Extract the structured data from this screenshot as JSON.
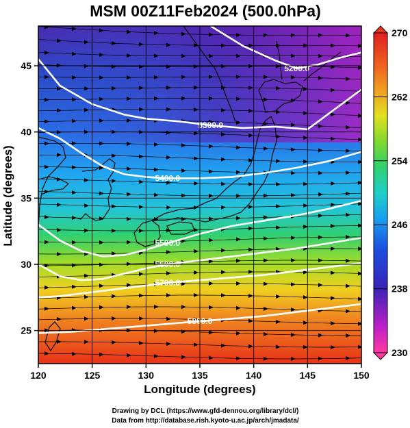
{
  "title": "MSM 00Z11Feb2024 (500.0hPa)",
  "xlabel": "Longitude (degrees)",
  "ylabel": "Latitude  (degrees)",
  "x_ticks": [
    "120",
    "125",
    "130",
    "135",
    "140",
    "145",
    "150"
  ],
  "y_ticks": [
    "25",
    "30",
    "35",
    "40",
    "45"
  ],
  "colorbar_ticks": [
    "270",
    "262",
    "254",
    "246",
    "238",
    "230"
  ],
  "contour_labels": [
    "5200.0",
    "5300.0",
    "5400.0",
    "5500.0",
    "5600.0",
    "5700.0",
    "5800.0"
  ],
  "credits": [
    "Drawing by DCL (https://www.gfd-dennou.org/library/dcl/)",
    "Data from http://database.rish.kyoto-u.ac.jp/arch/jmadata/"
  ],
  "chart_data": {
    "type": "heatmap",
    "variable_units": "K",
    "xlim": [
      120,
      150
    ],
    "ylim": [
      22.5,
      48
    ],
    "colorbar_range": [
      230,
      270
    ],
    "contours": [
      {
        "label": "5200.0",
        "lon": [
          136,
          139,
          142,
          144,
          146,
          148,
          150
        ],
        "lat": [
          48,
          46.5,
          45.4,
          44.8,
          45.1,
          45.6,
          46
        ]
      },
      {
        "label": "5300.0",
        "lon": [
          120,
          122,
          125,
          128,
          130,
          133,
          136,
          139,
          142,
          145,
          147,
          150
        ],
        "lat": [
          45.5,
          43.5,
          42.1,
          41.3,
          41.0,
          40.8,
          40.5,
          40.3,
          40.4,
          40.2,
          41.4,
          43.2
        ]
      },
      {
        "label": "5400.0",
        "lon": [
          120,
          122,
          124,
          126,
          128,
          130,
          132,
          135,
          138,
          141,
          144,
          147,
          150
        ],
        "lat": [
          40.3,
          39.5,
          38.4,
          37.4,
          36.8,
          36.6,
          36.5,
          36.5,
          36.6,
          36.9,
          37.3,
          37.8,
          38.5
        ]
      },
      {
        "label": "5500.0",
        "lon": [
          120,
          122,
          124,
          126,
          128,
          130,
          132,
          135,
          138,
          141,
          144,
          147,
          150
        ],
        "lat": [
          33.0,
          31.8,
          31.0,
          30.6,
          30.7,
          31.1,
          31.6,
          32.3,
          32.9,
          33.3,
          33.7,
          34.2,
          34.8
        ]
      },
      {
        "label": "5600.0",
        "lon": [
          120,
          122,
          124,
          126,
          128,
          130,
          132,
          135,
          138,
          141,
          144,
          147,
          150
        ],
        "lat": [
          30.0,
          29.1,
          28.8,
          28.9,
          29.3,
          29.7,
          30.0,
          30.3,
          30.6,
          30.9,
          31.2,
          31.6,
          32.0
        ]
      },
      {
        "label": "5700.0",
        "lon": [
          120,
          122,
          124,
          126,
          128,
          130,
          132,
          135,
          138,
          141,
          144,
          147,
          150
        ],
        "lat": [
          27.5,
          27.6,
          27.8,
          28.0,
          28.2,
          28.4,
          28.6,
          28.8,
          29.0,
          29.2,
          29.5,
          29.8,
          30.1
        ]
      },
      {
        "label": "5800.0",
        "lon": [
          120,
          123,
          126,
          129,
          132,
          135,
          138,
          141,
          144,
          147,
          150
        ],
        "lat": [
          24.8,
          24.9,
          25.1,
          25.3,
          25.5,
          25.7,
          25.9,
          26.1,
          26.4,
          26.7,
          27.0
        ]
      }
    ]
  }
}
